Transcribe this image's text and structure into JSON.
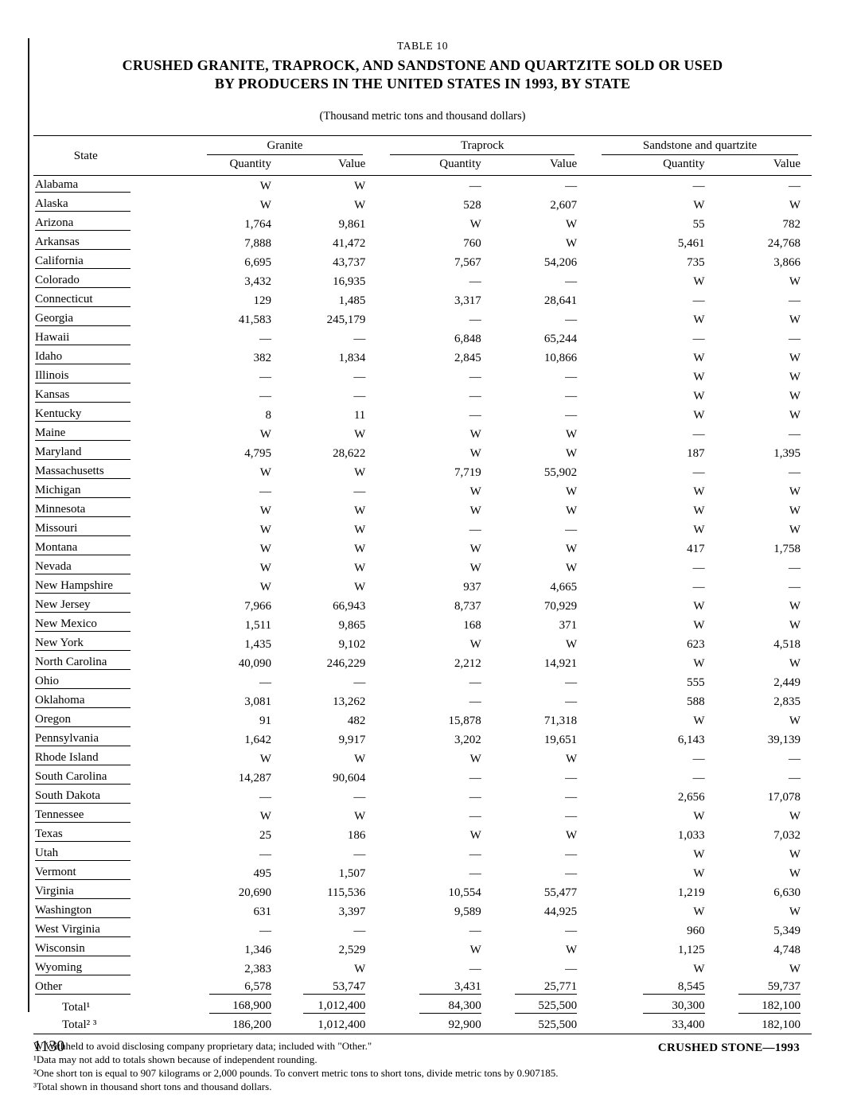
{
  "page": {
    "table_label": "TABLE 10",
    "title_line1": "CRUSHED GRANITE, TRAPROCK, AND SANDSTONE AND QUARTZITE SOLD OR USED",
    "title_line2": "BY PRODUCERS IN THE UNITED STATES IN 1993, BY STATE",
    "subtitle": "(Thousand metric tons and thousand dollars)",
    "page_number": "1130",
    "footer_right": "CRUSHED STONE—1993"
  },
  "table": {
    "state_header": "State",
    "groups": [
      {
        "label": "Granite"
      },
      {
        "label": "Traprock"
      },
      {
        "label": "Sandstone and quartzite"
      }
    ],
    "sub_headers": [
      "Quantity",
      "Value"
    ],
    "rows": [
      {
        "state": "Alabama",
        "values": [
          "W",
          "W",
          "—",
          "—",
          "—",
          "—"
        ],
        "state_underline": true,
        "values_underline": false,
        "indent": false
      },
      {
        "state": "Alaska",
        "values": [
          "W",
          "W",
          "528",
          "2,607",
          "W",
          "W"
        ],
        "state_underline": true,
        "values_underline": false,
        "indent": false
      },
      {
        "state": "Arizona",
        "values": [
          "1,764",
          "9,861",
          "W",
          "W",
          "55",
          "782"
        ],
        "state_underline": true,
        "values_underline": false,
        "indent": false
      },
      {
        "state": "Arkansas",
        "values": [
          "7,888",
          "41,472",
          "760",
          "W",
          "5,461",
          "24,768"
        ],
        "state_underline": true,
        "values_underline": false,
        "indent": false
      },
      {
        "state": "California",
        "values": [
          "6,695",
          "43,737",
          "7,567",
          "54,206",
          "735",
          "3,866"
        ],
        "state_underline": true,
        "values_underline": false,
        "indent": false
      },
      {
        "state": "Colorado",
        "values": [
          "3,432",
          "16,935",
          "—",
          "—",
          "W",
          "W"
        ],
        "state_underline": true,
        "values_underline": false,
        "indent": false
      },
      {
        "state": "Connecticut",
        "values": [
          "129",
          "1,485",
          "3,317",
          "28,641",
          "—",
          "—"
        ],
        "state_underline": true,
        "values_underline": false,
        "indent": false
      },
      {
        "state": "Georgia",
        "values": [
          "41,583",
          "245,179",
          "—",
          "—",
          "W",
          "W"
        ],
        "state_underline": true,
        "values_underline": false,
        "indent": false
      },
      {
        "state": "Hawaii",
        "values": [
          "—",
          "—",
          "6,848",
          "65,244",
          "—",
          "—"
        ],
        "state_underline": true,
        "values_underline": false,
        "indent": false
      },
      {
        "state": "Idaho",
        "values": [
          "382",
          "1,834",
          "2,845",
          "10,866",
          "W",
          "W"
        ],
        "state_underline": true,
        "values_underline": false,
        "indent": false
      },
      {
        "state": "Illinois",
        "values": [
          "—",
          "—",
          "—",
          "—",
          "W",
          "W"
        ],
        "state_underline": true,
        "values_underline": false,
        "indent": false
      },
      {
        "state": "Kansas",
        "values": [
          "—",
          "—",
          "—",
          "—",
          "W",
          "W"
        ],
        "state_underline": true,
        "values_underline": false,
        "indent": false
      },
      {
        "state": "Kentucky",
        "values": [
          "8",
          "11",
          "—",
          "—",
          "W",
          "W"
        ],
        "state_underline": true,
        "values_underline": false,
        "indent": false
      },
      {
        "state": "Maine",
        "values": [
          "W",
          "W",
          "W",
          "W",
          "—",
          "—"
        ],
        "state_underline": true,
        "values_underline": false,
        "indent": false
      },
      {
        "state": "Maryland",
        "values": [
          "4,795",
          "28,622",
          "W",
          "W",
          "187",
          "1,395"
        ],
        "state_underline": true,
        "values_underline": false,
        "indent": false
      },
      {
        "state": "Massachusetts",
        "values": [
          "W",
          "W",
          "7,719",
          "55,902",
          "—",
          "—"
        ],
        "state_underline": true,
        "values_underline": false,
        "indent": false
      },
      {
        "state": "Michigan",
        "values": [
          "—",
          "—",
          "W",
          "W",
          "W",
          "W"
        ],
        "state_underline": true,
        "values_underline": false,
        "indent": false
      },
      {
        "state": "Minnesota",
        "values": [
          "W",
          "W",
          "W",
          "W",
          "W",
          "W"
        ],
        "state_underline": true,
        "values_underline": false,
        "indent": false
      },
      {
        "state": "Missouri",
        "values": [
          "W",
          "W",
          "—",
          "—",
          "W",
          "W"
        ],
        "state_underline": true,
        "values_underline": false,
        "indent": false
      },
      {
        "state": "Montana",
        "values": [
          "W",
          "W",
          "W",
          "W",
          "417",
          "1,758"
        ],
        "state_underline": true,
        "values_underline": false,
        "indent": false
      },
      {
        "state": "Nevada",
        "values": [
          "W",
          "W",
          "W",
          "W",
          "—",
          "—"
        ],
        "state_underline": true,
        "values_underline": false,
        "indent": false
      },
      {
        "state": "New Hampshire",
        "values": [
          "W",
          "W",
          "937",
          "4,665",
          "—",
          "—"
        ],
        "state_underline": true,
        "values_underline": false,
        "indent": false
      },
      {
        "state": "New Jersey",
        "values": [
          "7,966",
          "66,943",
          "8,737",
          "70,929",
          "W",
          "W"
        ],
        "state_underline": true,
        "values_underline": false,
        "indent": false
      },
      {
        "state": "New Mexico",
        "values": [
          "1,511",
          "9,865",
          "168",
          "371",
          "W",
          "W"
        ],
        "state_underline": true,
        "values_underline": false,
        "indent": false
      },
      {
        "state": "New York",
        "values": [
          "1,435",
          "9,102",
          "W",
          "W",
          "623",
          "4,518"
        ],
        "state_underline": true,
        "values_underline": false,
        "indent": false
      },
      {
        "state": "North Carolina",
        "values": [
          "40,090",
          "246,229",
          "2,212",
          "14,921",
          "W",
          "W"
        ],
        "state_underline": true,
        "values_underline": false,
        "indent": false
      },
      {
        "state": "Ohio",
        "values": [
          "—",
          "—",
          "—",
          "—",
          "555",
          "2,449"
        ],
        "state_underline": true,
        "values_underline": false,
        "indent": false
      },
      {
        "state": "Oklahoma",
        "values": [
          "3,081",
          "13,262",
          "—",
          "—",
          "588",
          "2,835"
        ],
        "state_underline": true,
        "values_underline": false,
        "indent": false
      },
      {
        "state": "Oregon",
        "values": [
          "91",
          "482",
          "15,878",
          "71,318",
          "W",
          "W"
        ],
        "state_underline": true,
        "values_underline": false,
        "indent": false
      },
      {
        "state": "Pennsylvania",
        "values": [
          "1,642",
          "9,917",
          "3,202",
          "19,651",
          "6,143",
          "39,139"
        ],
        "state_underline": true,
        "values_underline": false,
        "indent": false
      },
      {
        "state": "Rhode Island",
        "values": [
          "W",
          "W",
          "W",
          "W",
          "—",
          "—"
        ],
        "state_underline": true,
        "values_underline": false,
        "indent": false
      },
      {
        "state": "South Carolina",
        "values": [
          "14,287",
          "90,604",
          "—",
          "—",
          "—",
          "—"
        ],
        "state_underline": true,
        "values_underline": false,
        "indent": false
      },
      {
        "state": "South Dakota",
        "values": [
          "—",
          "—",
          "—",
          "—",
          "2,656",
          "17,078"
        ],
        "state_underline": true,
        "values_underline": false,
        "indent": false
      },
      {
        "state": "Tennessee",
        "values": [
          "W",
          "W",
          "—",
          "—",
          "W",
          "W"
        ],
        "state_underline": true,
        "values_underline": false,
        "indent": false
      },
      {
        "state": "Texas",
        "values": [
          "25",
          "186",
          "W",
          "W",
          "1,033",
          "7,032"
        ],
        "state_underline": true,
        "values_underline": false,
        "indent": false
      },
      {
        "state": "Utah",
        "values": [
          "—",
          "—",
          "—",
          "—",
          "W",
          "W"
        ],
        "state_underline": true,
        "values_underline": false,
        "indent": false
      },
      {
        "state": "Vermont",
        "values": [
          "495",
          "1,507",
          "—",
          "—",
          "W",
          "W"
        ],
        "state_underline": true,
        "values_underline": false,
        "indent": false
      },
      {
        "state": "Virginia",
        "values": [
          "20,690",
          "115,536",
          "10,554",
          "55,477",
          "1,219",
          "6,630"
        ],
        "state_underline": true,
        "values_underline": false,
        "indent": false
      },
      {
        "state": "Washington",
        "values": [
          "631",
          "3,397",
          "9,589",
          "44,925",
          "W",
          "W"
        ],
        "state_underline": true,
        "values_underline": false,
        "indent": false
      },
      {
        "state": "West Virginia",
        "values": [
          "—",
          "—",
          "—",
          "—",
          "960",
          "5,349"
        ],
        "state_underline": true,
        "values_underline": false,
        "indent": false
      },
      {
        "state": "Wisconsin",
        "values": [
          "1,346",
          "2,529",
          "W",
          "W",
          "1,125",
          "4,748"
        ],
        "state_underline": true,
        "values_underline": false,
        "indent": false
      },
      {
        "state": "Wyoming",
        "values": [
          "2,383",
          "W",
          "—",
          "—",
          "W",
          "W"
        ],
        "state_underline": true,
        "values_underline": false,
        "indent": false
      },
      {
        "state": "Other",
        "values": [
          "6,578",
          "53,747",
          "3,431",
          "25,771",
          "8,545",
          "59,737"
        ],
        "state_underline": true,
        "values_underline": true,
        "indent": false
      },
      {
        "state": "Total¹",
        "values": [
          "168,900",
          "1,012,400",
          "84,300",
          "525,500",
          "30,300",
          "182,100"
        ],
        "state_underline": false,
        "values_underline": true,
        "indent": true
      },
      {
        "state": "Total² ³",
        "values": [
          "186,200",
          "1,012,400",
          "92,900",
          "525,500",
          "33,400",
          "182,100"
        ],
        "state_underline": false,
        "values_underline": false,
        "indent": true
      }
    ],
    "footnotes": [
      "W Withheld to avoid disclosing company proprietary data; included with \"Other.\"",
      "¹Data may not add to totals shown because of independent rounding.",
      "²One short ton is equal to 907 kilograms or 2,000 pounds.  To convert metric tons to short tons,  divide metric tons by 0.907185.",
      "³Total shown in thousand short tons and thousand dollars."
    ]
  }
}
